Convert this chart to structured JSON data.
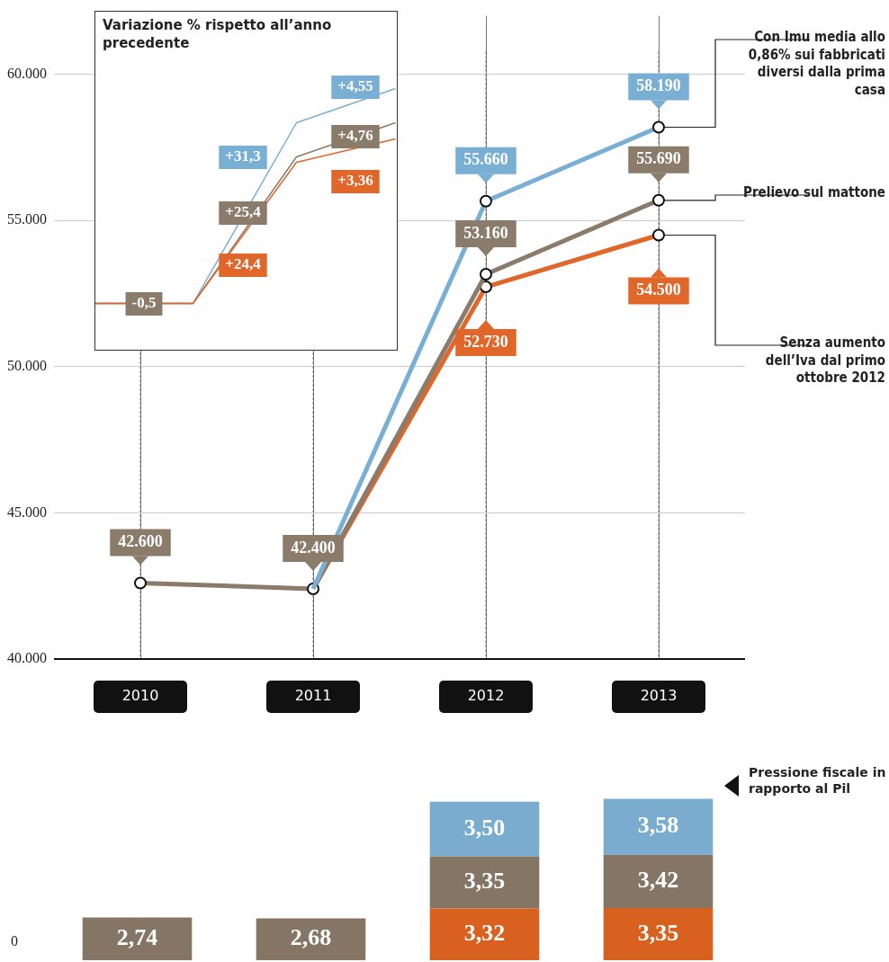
{
  "chart_data": [
    {
      "type": "line",
      "categories": [
        "2010",
        "2011",
        "2012",
        "2013"
      ],
      "ylim": [
        40000,
        62000
      ],
      "yticks": [
        {
          "value": 40000,
          "label": "40.000"
        },
        {
          "value": 45000,
          "label": "45.000"
        },
        {
          "value": 50000,
          "label": "50.000"
        },
        {
          "value": 55000,
          "label": "55.000"
        },
        {
          "value": 60000,
          "label": "60.000"
        }
      ],
      "grid": true,
      "marker": "circle",
      "series": [
        {
          "name": "Con Imu media allo 0,86% sui fabbricati diversi dalla prima casa",
          "color": "#7aafd4",
          "values": [
            null,
            42400,
            55660,
            58190
          ],
          "value_labels": [
            null,
            null,
            "55.660",
            "58.190"
          ]
        },
        {
          "name": "Prelievo sul mattone",
          "color": "#8a7b6b",
          "values": [
            42600,
            42400,
            53160,
            55690
          ],
          "value_labels": [
            "42.600",
            "42.400",
            "53.160",
            "55.690"
          ]
        },
        {
          "name": "Senza aumento dell’Iva dal primo ottobre 2012",
          "color": "#e0662a",
          "values": [
            null,
            42400,
            52730,
            54500
          ],
          "value_labels": [
            null,
            null,
            "52.730",
            "54.500"
          ]
        }
      ]
    },
    {
      "type": "other",
      "title": "Variazione % rispetto all’anno precedente",
      "annotations": [
        "-0,5",
        "+31,3",
        "+25,4",
        "+24,4",
        "+4,55",
        "+4,76",
        "+3,36"
      ]
    },
    {
      "type": "bar",
      "stacked": true,
      "title": "Pressione fiscale in rapporto al Pil",
      "categories": [
        null,
        null,
        null,
        null
      ],
      "annotations": [
        "0"
      ],
      "series": [
        {
          "color": "#d9611f",
          "values": [
            null,
            null,
            3.32,
            3.35
          ],
          "value_labels": [
            null,
            null,
            "3,32",
            "3,35"
          ]
        },
        {
          "color": "#857565",
          "values": [
            2.74,
            2.68,
            3.35,
            3.42
          ],
          "value_labels": [
            "2,74",
            "2,68",
            "3,35",
            "3,42"
          ]
        },
        {
          "color": "#7aaccf",
          "values": [
            null,
            null,
            3.5,
            3.58
          ],
          "value_labels": [
            null,
            null,
            "3,50",
            "3,58"
          ]
        }
      ]
    }
  ]
}
